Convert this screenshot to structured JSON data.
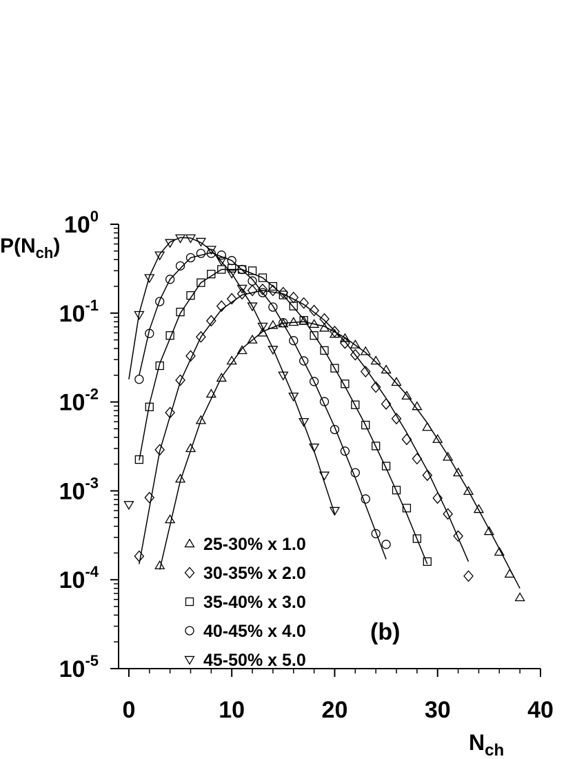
{
  "chart_data": {
    "type": "scatter",
    "y_label": {
      "text": "P(N",
      "sub": "ch",
      "end": ")"
    },
    "x_label": {
      "text": "N",
      "sub": "ch"
    },
    "annotation": "(b)",
    "log_y": true,
    "xlim": [
      -1,
      40
    ],
    "ylim": [
      1e-05,
      1
    ],
    "xticks": [
      0,
      10,
      20,
      30,
      40
    ],
    "xminorticks": [
      2,
      4,
      6,
      8,
      12,
      14,
      16,
      18,
      22,
      24,
      26,
      28,
      32,
      34,
      36,
      38
    ],
    "yticks": [
      {
        "value": 1,
        "label": "10",
        "exponent": "0"
      },
      {
        "value": 0.1,
        "label": "10",
        "exponent": "-1"
      },
      {
        "value": 0.01,
        "label": "10",
        "exponent": "-2"
      },
      {
        "value": 0.001,
        "label": "10",
        "exponent": "-3"
      },
      {
        "value": 0.0001,
        "label": "10",
        "exponent": "-4"
      },
      {
        "value": 1e-05,
        "label": "10",
        "exponent": "-5"
      }
    ],
    "yminorticks": [
      2e-05,
      3e-05,
      4e-05,
      5e-05,
      6e-05,
      7e-05,
      8e-05,
      9e-05,
      0.0002,
      0.0003,
      0.0004,
      0.0005,
      0.0006,
      0.0007,
      0.0008,
      0.0009,
      0.002,
      0.003,
      0.004,
      0.005,
      0.006,
      0.007,
      0.008,
      0.009,
      0.02,
      0.03,
      0.04,
      0.05,
      0.06,
      0.07,
      0.08,
      0.09,
      0.2,
      0.3,
      0.4,
      0.5,
      0.6,
      0.7,
      0.8,
      0.9
    ],
    "color": "#000000",
    "series": [
      {
        "name": "25-30% x 1.0",
        "marker": "triangle-up",
        "x": [
          3,
          4,
          5,
          6,
          7,
          8,
          9,
          10,
          11,
          12,
          13,
          14,
          15,
          16,
          17,
          18,
          19,
          20,
          21,
          22,
          23,
          24,
          25,
          26,
          27,
          28,
          29,
          30,
          31,
          32,
          33,
          34,
          35,
          36,
          37,
          38
        ],
        "values": [
          0.000144,
          0.000475,
          0.00136,
          0.003,
          0.0062,
          0.0123,
          0.0186,
          0.029,
          0.038,
          0.05,
          0.06,
          0.073,
          0.076,
          0.079,
          0.081,
          0.075,
          0.068,
          0.058,
          0.052,
          0.044,
          0.037,
          0.029,
          0.023,
          0.0167,
          0.0117,
          0.0089,
          0.0052,
          0.0038,
          0.0024,
          0.0016,
          0.00099,
          0.00062,
          0.00035,
          0.000205,
          0.000116,
          6.3e-05
        ],
        "fit": {
          "x": [
            3,
            5,
            7,
            9,
            11,
            13,
            15,
            17,
            19,
            21,
            23,
            25,
            27,
            29,
            31,
            33,
            35,
            38
          ],
          "values": [
            0.00013,
            0.0013,
            0.0062,
            0.019,
            0.04,
            0.062,
            0.077,
            0.08,
            0.071,
            0.053,
            0.036,
            0.022,
            0.012,
            0.0058,
            0.0025,
            0.001,
            0.00037,
            8e-05
          ]
        }
      },
      {
        "name": "30-35% x 2.0",
        "marker": "diamond",
        "x": [
          1,
          2,
          3,
          4,
          5,
          6,
          7,
          8,
          9,
          10,
          11,
          12,
          13,
          14,
          15,
          16,
          17,
          18,
          19,
          20,
          21,
          22,
          23,
          24,
          25,
          26,
          27,
          28,
          29,
          30,
          31,
          32,
          33
        ],
        "values": [
          0.000184,
          0.00084,
          0.0029,
          0.0076,
          0.0176,
          0.033,
          0.054,
          0.082,
          0.12,
          0.145,
          0.165,
          0.18,
          0.185,
          0.18,
          0.17,
          0.15,
          0.13,
          0.107,
          0.086,
          0.062,
          0.046,
          0.034,
          0.022,
          0.0147,
          0.0095,
          0.0065,
          0.0038,
          0.0023,
          0.0015,
          0.00083,
          0.00055,
          0.00031,
          0.00011
        ],
        "fit": {
          "x": [
            1,
            3,
            5,
            7,
            9,
            11,
            13,
            15,
            17,
            19,
            21,
            23,
            25,
            27,
            29,
            31,
            33
          ],
          "values": [
            0.00015,
            0.0028,
            0.017,
            0.054,
            0.11,
            0.16,
            0.18,
            0.165,
            0.125,
            0.083,
            0.048,
            0.024,
            0.011,
            0.0045,
            0.0017,
            0.00055,
            0.00016
          ]
        }
      },
      {
        "name": "35-40% x 3.0",
        "marker": "square",
        "x": [
          1,
          2,
          3,
          4,
          5,
          6,
          7,
          8,
          9,
          10,
          11,
          12,
          13,
          14,
          15,
          16,
          17,
          18,
          19,
          20,
          21,
          22,
          23,
          24,
          25,
          26,
          27,
          28,
          29
        ],
        "values": [
          0.00225,
          0.0088,
          0.0256,
          0.056,
          0.103,
          0.158,
          0.22,
          0.275,
          0.31,
          0.32,
          0.31,
          0.3,
          0.25,
          0.2,
          0.16,
          0.12,
          0.083,
          0.056,
          0.038,
          0.024,
          0.016,
          0.0093,
          0.0055,
          0.0032,
          0.0019,
          0.00102,
          0.00064,
          0.00029,
          0.00016
        ],
        "fit": {
          "x": [
            1,
            2,
            3,
            5,
            7,
            9,
            11,
            13,
            15,
            17,
            19,
            21,
            23,
            25,
            27,
            29
          ],
          "values": [
            0.0022,
            0.0095,
            0.027,
            0.1,
            0.22,
            0.31,
            0.31,
            0.25,
            0.16,
            0.085,
            0.038,
            0.015,
            0.0055,
            0.0018,
            0.00055,
            0.00015
          ]
        }
      },
      {
        "name": "40-45% x 4.0",
        "marker": "circle",
        "x": [
          1,
          2,
          3,
          4,
          5,
          6,
          7,
          8,
          9,
          10,
          11,
          12,
          13,
          14,
          15,
          16,
          17,
          18,
          19,
          20,
          21,
          22,
          23,
          24,
          25
        ],
        "values": [
          0.018,
          0.059,
          0.135,
          0.24,
          0.34,
          0.42,
          0.47,
          0.47,
          0.45,
          0.39,
          0.31,
          0.23,
          0.17,
          0.117,
          0.078,
          0.049,
          0.029,
          0.017,
          0.0101,
          0.0049,
          0.0028,
          0.0016,
          0.00081,
          0.00033,
          0.00025
        ],
        "fit": {
          "x": [
            1,
            2,
            3,
            4,
            6,
            8,
            10,
            12,
            14,
            16,
            18,
            20,
            22,
            25
          ],
          "values": [
            0.02,
            0.065,
            0.14,
            0.24,
            0.42,
            0.48,
            0.39,
            0.24,
            0.12,
            0.048,
            0.017,
            0.0052,
            0.0014,
            0.00017
          ]
        }
      },
      {
        "name": "45-50% x 5.0",
        "marker": "triangle-down",
        "x": [
          0,
          1,
          2,
          3,
          4,
          5,
          6,
          7,
          8,
          9,
          10,
          11,
          12,
          13,
          14,
          15,
          16,
          17,
          18,
          19,
          20
        ],
        "values": [
          0.0007,
          0.096,
          0.25,
          0.45,
          0.62,
          0.7,
          0.7,
          0.64,
          0.52,
          0.39,
          0.28,
          0.19,
          0.12,
          0.071,
          0.039,
          0.02,
          0.0116,
          0.006,
          0.0031,
          0.0015,
          0.0006
        ],
        "fit": {
          "x": [
            0,
            1,
            2,
            3,
            4,
            5,
            6,
            7,
            8,
            10,
            12,
            14,
            16,
            18,
            20
          ],
          "values": [
            0.018,
            0.1,
            0.26,
            0.46,
            0.63,
            0.71,
            0.7,
            0.62,
            0.51,
            0.28,
            0.12,
            0.04,
            0.0115,
            0.0028,
            0.00055
          ]
        }
      }
    ]
  }
}
